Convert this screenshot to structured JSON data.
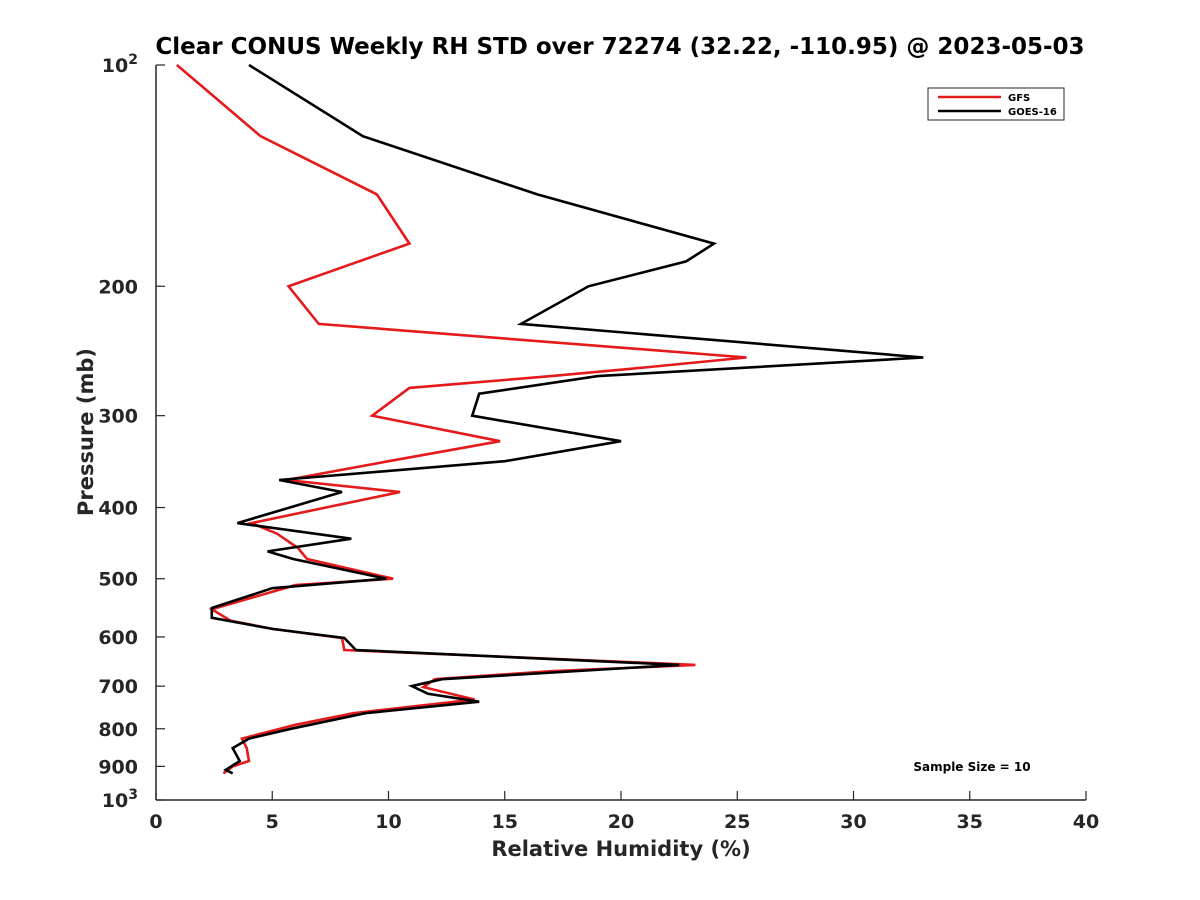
{
  "chart_data": {
    "type": "line",
    "title": "Clear CONUS Weekly RH STD over 72274 (32.22, -110.95) @ 2023-05-03",
    "xlabel": "Relative Humidity (%)",
    "ylabel": "Pressure (mb)",
    "xlim": [
      0,
      40
    ],
    "ylim": [
      100,
      1000
    ],
    "y_scale": "log",
    "y_reversed": true,
    "grid": false,
    "legend_position": "top-right",
    "x_ticks": [
      {
        "value": 0,
        "label": "0"
      },
      {
        "value": 5,
        "label": "5"
      },
      {
        "value": 10,
        "label": "10"
      },
      {
        "value": 15,
        "label": "15"
      },
      {
        "value": 20,
        "label": "20"
      },
      {
        "value": 25,
        "label": "25"
      },
      {
        "value": 30,
        "label": "30"
      },
      {
        "value": 35,
        "label": "35"
      },
      {
        "value": 40,
        "label": "40"
      }
    ],
    "y_ticks": [
      {
        "value": 100,
        "label": "10",
        "sup": "2"
      },
      {
        "value": 200,
        "label": "200",
        "sup": ""
      },
      {
        "value": 300,
        "label": "300",
        "sup": ""
      },
      {
        "value": 400,
        "label": "400",
        "sup": ""
      },
      {
        "value": 500,
        "label": "500",
        "sup": ""
      },
      {
        "value": 600,
        "label": "600",
        "sup": ""
      },
      {
        "value": 700,
        "label": "700",
        "sup": ""
      },
      {
        "value": 800,
        "label": "800",
        "sup": ""
      },
      {
        "value": 900,
        "label": "900",
        "sup": ""
      },
      {
        "value": 1000,
        "label": "10",
        "sup": "3"
      }
    ],
    "annotation": "Sample Size = 10",
    "series": [
      {
        "name": "GFS",
        "color": "#e41a1c",
        "points": [
          {
            "x": 0.9,
            "y": 100
          },
          {
            "x": 4.5,
            "y": 125
          },
          {
            "x": 9.5,
            "y": 150
          },
          {
            "x": 10.9,
            "y": 175
          },
          {
            "x": 5.7,
            "y": 200
          },
          {
            "x": 7.0,
            "y": 225
          },
          {
            "x": 25.4,
            "y": 250
          },
          {
            "x": 21.0,
            "y": 258
          },
          {
            "x": 17.0,
            "y": 265
          },
          {
            "x": 10.9,
            "y": 275
          },
          {
            "x": 9.3,
            "y": 300
          },
          {
            "x": 14.8,
            "y": 325
          },
          {
            "x": 10.0,
            "y": 346
          },
          {
            "x": 5.6,
            "y": 367
          },
          {
            "x": 10.5,
            "y": 381
          },
          {
            "x": 4.1,
            "y": 420
          },
          {
            "x": 5.2,
            "y": 434
          },
          {
            "x": 6.1,
            "y": 454
          },
          {
            "x": 6.5,
            "y": 470
          },
          {
            "x": 10.2,
            "y": 500
          },
          {
            "x": 6.0,
            "y": 510
          },
          {
            "x": 2.4,
            "y": 550
          },
          {
            "x": 3.2,
            "y": 570
          },
          {
            "x": 5.0,
            "y": 585
          },
          {
            "x": 8.0,
            "y": 602
          },
          {
            "x": 8.1,
            "y": 625
          },
          {
            "x": 23.2,
            "y": 655
          },
          {
            "x": 17.0,
            "y": 668
          },
          {
            "x": 12.0,
            "y": 685
          },
          {
            "x": 11.5,
            "y": 702
          },
          {
            "x": 13.7,
            "y": 730
          },
          {
            "x": 8.5,
            "y": 762
          },
          {
            "x": 6.0,
            "y": 790
          },
          {
            "x": 3.7,
            "y": 825
          },
          {
            "x": 3.9,
            "y": 850
          },
          {
            "x": 4.0,
            "y": 885
          },
          {
            "x": 3.3,
            "y": 900
          },
          {
            "x": 2.9,
            "y": 920
          }
        ]
      },
      {
        "name": "GOES-16",
        "color": "#000000",
        "points": [
          {
            "x": 4.0,
            "y": 100
          },
          {
            "x": 8.9,
            "y": 125
          },
          {
            "x": 16.4,
            "y": 150
          },
          {
            "x": 24.0,
            "y": 175
          },
          {
            "x": 22.8,
            "y": 185
          },
          {
            "x": 18.6,
            "y": 200
          },
          {
            "x": 15.7,
            "y": 225
          },
          {
            "x": 33.0,
            "y": 250
          },
          {
            "x": 19.0,
            "y": 265
          },
          {
            "x": 13.9,
            "y": 280
          },
          {
            "x": 13.6,
            "y": 300
          },
          {
            "x": 20.0,
            "y": 325
          },
          {
            "x": 15.0,
            "y": 346
          },
          {
            "x": 5.3,
            "y": 367
          },
          {
            "x": 8.0,
            "y": 381
          },
          {
            "x": 3.5,
            "y": 420
          },
          {
            "x": 8.4,
            "y": 441
          },
          {
            "x": 4.8,
            "y": 459
          },
          {
            "x": 5.9,
            "y": 470
          },
          {
            "x": 9.9,
            "y": 500
          },
          {
            "x": 5.0,
            "y": 515
          },
          {
            "x": 2.4,
            "y": 548
          },
          {
            "x": 2.4,
            "y": 565
          },
          {
            "x": 5.0,
            "y": 585
          },
          {
            "x": 8.1,
            "y": 602
          },
          {
            "x": 8.6,
            "y": 625
          },
          {
            "x": 22.5,
            "y": 655
          },
          {
            "x": 12.3,
            "y": 685
          },
          {
            "x": 11.0,
            "y": 700
          },
          {
            "x": 11.7,
            "y": 717
          },
          {
            "x": 13.9,
            "y": 735
          },
          {
            "x": 9.0,
            "y": 762
          },
          {
            "x": 5.8,
            "y": 800
          },
          {
            "x": 4.0,
            "y": 825
          },
          {
            "x": 3.3,
            "y": 850
          },
          {
            "x": 3.6,
            "y": 885
          },
          {
            "x": 3.0,
            "y": 910
          },
          {
            "x": 3.3,
            "y": 920
          }
        ]
      }
    ]
  }
}
